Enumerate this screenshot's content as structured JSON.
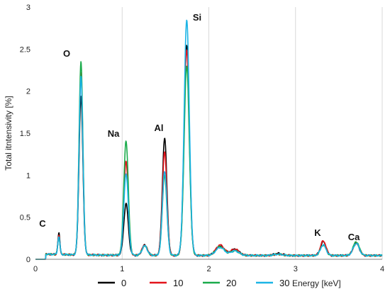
{
  "chart_data": {
    "type": "line",
    "xlabel": "Energy [keV]",
    "ylabel": "Total itntensivity [%]",
    "xlim": [
      0,
      4
    ],
    "ylim": [
      0,
      3
    ],
    "x_ticks": [
      "0",
      "1",
      "2",
      "3",
      "4"
    ],
    "y_ticks": [
      "0",
      "0.5",
      "1",
      "1.5",
      "2",
      "2.5",
      "3"
    ],
    "grid": "vertical",
    "legend_position": "bottom",
    "annotations": [
      "C",
      "O",
      "Na",
      "Al",
      "Si",
      "K",
      "Ca"
    ],
    "peaks": [
      {
        "element": "C",
        "energy": 0.11
      },
      {
        "element": "O",
        "energy": 0.53
      },
      {
        "element": "Na",
        "energy": 1.05
      },
      {
        "element": "Al",
        "energy": 1.49
      },
      {
        "element": "Si",
        "energy": 1.75
      },
      {
        "element": "K",
        "energy": 3.32
      },
      {
        "element": "Ca",
        "energy": 3.7
      }
    ],
    "series": [
      {
        "name": "0",
        "color": "#000000",
        "peak_heights": {
          "C_ka": 0.31,
          "O": 1.94,
          "Na": 0.66,
          "Mg": 0.17,
          "Al": 1.44,
          "Si": 2.55,
          "S1": 0.16,
          "S2": 0.12,
          "Fe": 0.07,
          "K": 0.21,
          "Ca": 0.19
        }
      },
      {
        "name": "10",
        "color": "#e3141b",
        "peak_heights": {
          "C_ka": 0.28,
          "O": 2.22,
          "Na": 1.16,
          "Mg": 0.17,
          "Al": 1.27,
          "Si": 2.49,
          "S1": 0.17,
          "S2": 0.12,
          "Fe": 0.06,
          "K": 0.22,
          "Ca": 0.2
        }
      },
      {
        "name": "20",
        "color": "#1aab4b",
        "peak_heights": {
          "C_ka": 0.27,
          "O": 2.36,
          "Na": 1.41,
          "Mg": 0.16,
          "Al": 1.0,
          "Si": 2.3,
          "S1": 0.15,
          "S2": 0.1,
          "Fe": 0.06,
          "K": 0.17,
          "Ca": 0.21
        }
      },
      {
        "name": "30",
        "color": "#1cb4e6",
        "peak_heights": {
          "C_ka": 0.27,
          "O": 2.18,
          "Na": 1.02,
          "Mg": 0.16,
          "Al": 1.05,
          "Si": 2.85,
          "S1": 0.14,
          "S2": 0.1,
          "Fe": 0.06,
          "K": 0.17,
          "Ca": 0.19
        }
      }
    ]
  }
}
